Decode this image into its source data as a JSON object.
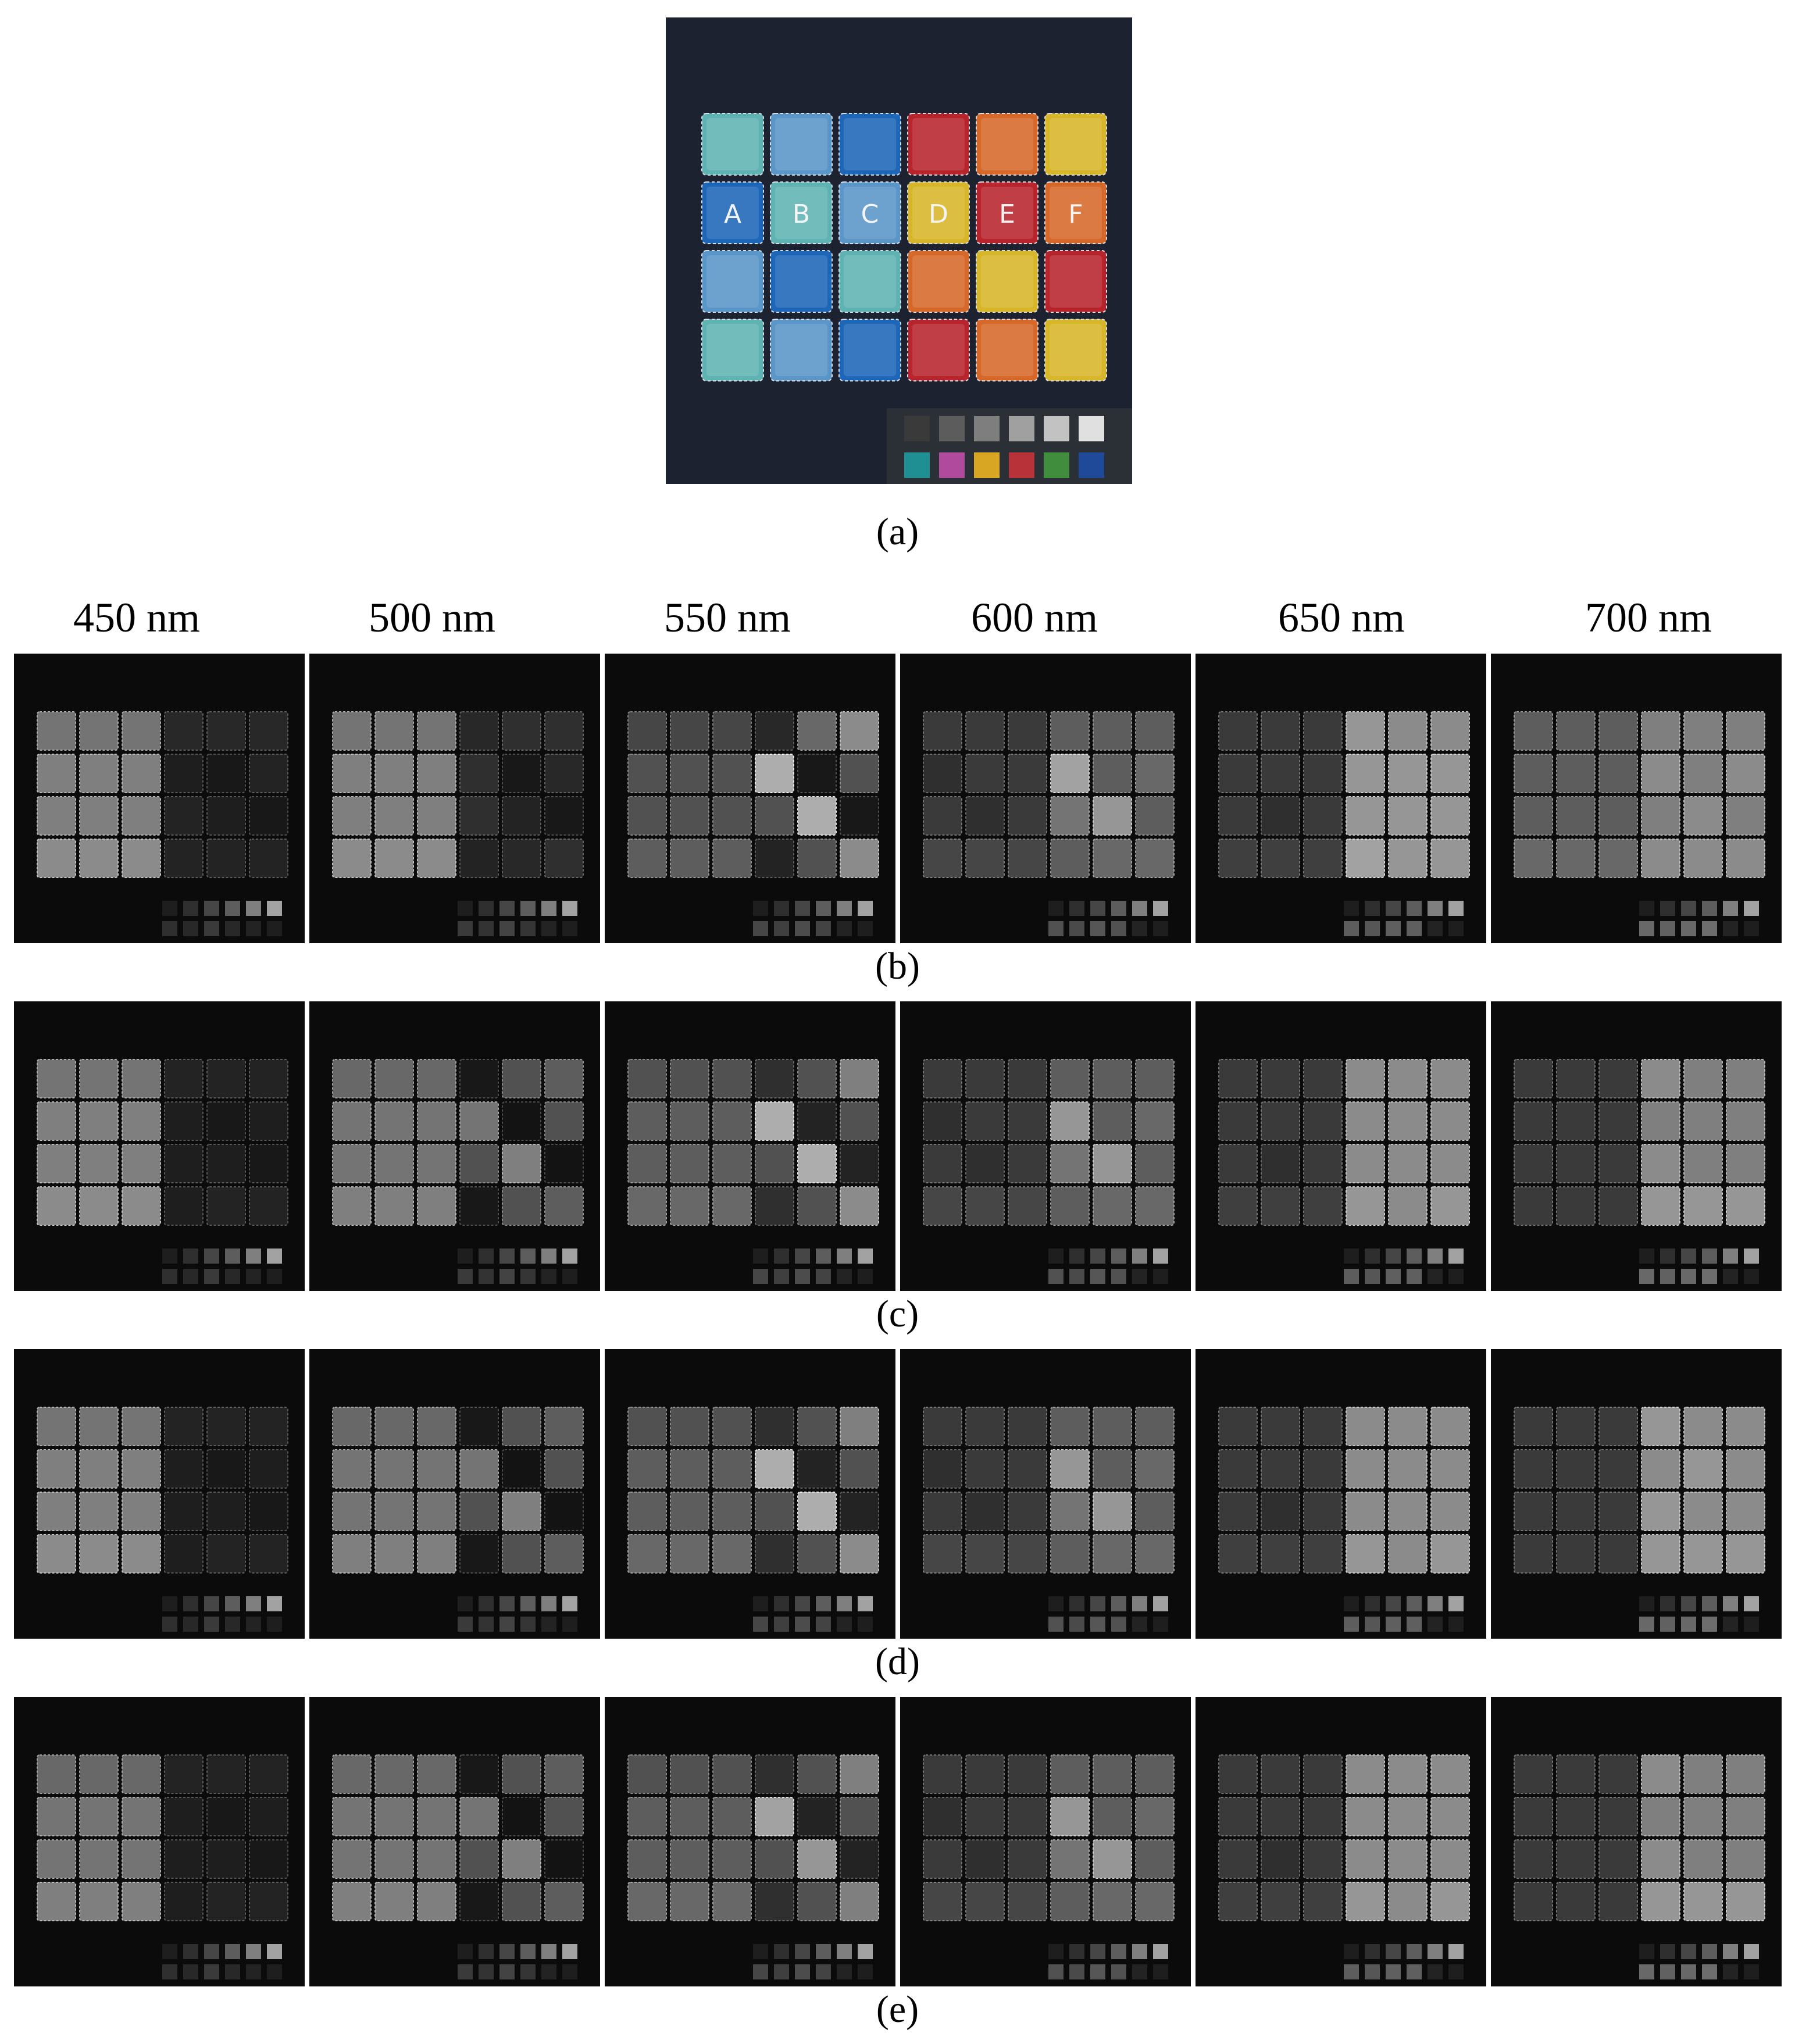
{
  "figure": {
    "panel_a": {
      "caption": "(a)",
      "tile_letters": [
        "A",
        "B",
        "C",
        "D",
        "E",
        "F"
      ],
      "tile_colors": {
        "teal": "#5fb3b3",
        "light_blue": "#5a96c8",
        "blue": "#1d66b8",
        "red": "#b8242c",
        "orange": "#d6692a",
        "yellow": "#d8b62a",
        "background": "#1d2230"
      },
      "tile_grid": [
        [
          "teal",
          "light_blue",
          "blue",
          "red",
          "orange",
          "yellow"
        ],
        [
          "blue",
          "teal",
          "light_blue",
          "yellow",
          "red",
          "orange"
        ],
        [
          "light_blue",
          "blue",
          "teal",
          "orange",
          "yellow",
          "red"
        ],
        [
          "teal",
          "light_blue",
          "blue",
          "red",
          "orange",
          "yellow"
        ]
      ],
      "color_checker_top": [
        "#3a3a3a",
        "#5c5c5c",
        "#7e7e7e",
        "#a0a0a0",
        "#c2c2c2",
        "#e0e0e0"
      ],
      "color_checker_bottom": [
        "#1f8f94",
        "#b04a9c",
        "#d8a622",
        "#b8323a",
        "#3f8d3d",
        "#1f4a9a"
      ]
    },
    "wavelength_labels": [
      "450 nm",
      "500 nm",
      "550 nm",
      "600 nm",
      "650 nm",
      "700 nm"
    ],
    "rows": [
      {
        "caption": "(b)",
        "brightness": [
          [
            [
              0.45,
              0.45,
              0.45,
              0.12,
              0.12,
              0.12
            ],
            [
              0.5,
              0.5,
              0.5,
              0.08,
              0.05,
              0.1
            ],
            [
              0.5,
              0.5,
              0.5,
              0.1,
              0.08,
              0.05
            ],
            [
              0.55,
              0.55,
              0.55,
              0.1,
              0.1,
              0.1
            ]
          ],
          [
            [
              0.45,
              0.45,
              0.45,
              0.12,
              0.15,
              0.15
            ],
            [
              0.5,
              0.5,
              0.5,
              0.15,
              0.05,
              0.12
            ],
            [
              0.5,
              0.5,
              0.5,
              0.15,
              0.1,
              0.05
            ],
            [
              0.55,
              0.55,
              0.55,
              0.1,
              0.12,
              0.15
            ]
          ],
          [
            [
              0.25,
              0.25,
              0.25,
              0.12,
              0.4,
              0.55
            ],
            [
              0.3,
              0.3,
              0.3,
              0.7,
              0.05,
              0.3
            ],
            [
              0.3,
              0.3,
              0.3,
              0.3,
              0.7,
              0.05
            ],
            [
              0.35,
              0.35,
              0.35,
              0.1,
              0.3,
              0.55
            ]
          ],
          [
            [
              0.2,
              0.2,
              0.2,
              0.35,
              0.35,
              0.35
            ],
            [
              0.15,
              0.2,
              0.2,
              0.65,
              0.35,
              0.4
            ],
            [
              0.2,
              0.15,
              0.2,
              0.45,
              0.6,
              0.35
            ],
            [
              0.25,
              0.25,
              0.25,
              0.35,
              0.4,
              0.4
            ]
          ],
          [
            [
              0.2,
              0.2,
              0.2,
              0.6,
              0.55,
              0.55
            ],
            [
              0.2,
              0.2,
              0.2,
              0.6,
              0.6,
              0.6
            ],
            [
              0.2,
              0.15,
              0.2,
              0.6,
              0.6,
              0.6
            ],
            [
              0.22,
              0.22,
              0.22,
              0.65,
              0.6,
              0.6
            ]
          ],
          [
            [
              0.35,
              0.35,
              0.35,
              0.5,
              0.5,
              0.5
            ],
            [
              0.35,
              0.35,
              0.35,
              0.55,
              0.5,
              0.55
            ],
            [
              0.35,
              0.35,
              0.35,
              0.5,
              0.55,
              0.5
            ],
            [
              0.4,
              0.4,
              0.4,
              0.55,
              0.55,
              0.55
            ]
          ]
        ]
      },
      {
        "caption": "(c)",
        "brightness": [
          [
            [
              0.45,
              0.45,
              0.45,
              0.1,
              0.1,
              0.1
            ],
            [
              0.5,
              0.5,
              0.5,
              0.08,
              0.05,
              0.08
            ],
            [
              0.5,
              0.5,
              0.5,
              0.08,
              0.08,
              0.05
            ],
            [
              0.55,
              0.55,
              0.55,
              0.08,
              0.1,
              0.1
            ]
          ],
          [
            [
              0.4,
              0.4,
              0.4,
              0.05,
              0.3,
              0.35
            ],
            [
              0.45,
              0.45,
              0.45,
              0.45,
              0.03,
              0.3
            ],
            [
              0.45,
              0.45,
              0.45,
              0.3,
              0.5,
              0.03
            ],
            [
              0.5,
              0.5,
              0.5,
              0.05,
              0.3,
              0.35
            ]
          ],
          [
            [
              0.3,
              0.3,
              0.3,
              0.15,
              0.3,
              0.5
            ],
            [
              0.35,
              0.35,
              0.35,
              0.7,
              0.1,
              0.3
            ],
            [
              0.35,
              0.35,
              0.35,
              0.3,
              0.7,
              0.1
            ],
            [
              0.4,
              0.4,
              0.4,
              0.15,
              0.3,
              0.55
            ]
          ],
          [
            [
              0.2,
              0.2,
              0.2,
              0.35,
              0.35,
              0.35
            ],
            [
              0.15,
              0.2,
              0.2,
              0.6,
              0.35,
              0.4
            ],
            [
              0.2,
              0.15,
              0.2,
              0.45,
              0.6,
              0.35
            ],
            [
              0.25,
              0.25,
              0.25,
              0.35,
              0.4,
              0.4
            ]
          ],
          [
            [
              0.2,
              0.2,
              0.2,
              0.55,
              0.55,
              0.55
            ],
            [
              0.2,
              0.2,
              0.2,
              0.55,
              0.55,
              0.55
            ],
            [
              0.2,
              0.15,
              0.2,
              0.55,
              0.55,
              0.55
            ],
            [
              0.22,
              0.22,
              0.22,
              0.6,
              0.55,
              0.6
            ]
          ],
          [
            [
              0.2,
              0.2,
              0.2,
              0.55,
              0.5,
              0.5
            ],
            [
              0.2,
              0.2,
              0.2,
              0.5,
              0.5,
              0.5
            ],
            [
              0.2,
              0.2,
              0.2,
              0.55,
              0.5,
              0.5
            ],
            [
              0.2,
              0.2,
              0.2,
              0.6,
              0.6,
              0.6
            ]
          ]
        ]
      },
      {
        "caption": "(d)",
        "brightness": [
          [
            [
              0.45,
              0.45,
              0.45,
              0.1,
              0.1,
              0.1
            ],
            [
              0.5,
              0.5,
              0.5,
              0.08,
              0.05,
              0.08
            ],
            [
              0.5,
              0.5,
              0.5,
              0.08,
              0.08,
              0.05
            ],
            [
              0.55,
              0.55,
              0.55,
              0.08,
              0.1,
              0.1
            ]
          ],
          [
            [
              0.4,
              0.4,
              0.4,
              0.05,
              0.3,
              0.35
            ],
            [
              0.45,
              0.45,
              0.45,
              0.45,
              0.03,
              0.3
            ],
            [
              0.45,
              0.45,
              0.45,
              0.3,
              0.5,
              0.03
            ],
            [
              0.5,
              0.5,
              0.5,
              0.05,
              0.3,
              0.35
            ]
          ],
          [
            [
              0.3,
              0.3,
              0.3,
              0.15,
              0.3,
              0.5
            ],
            [
              0.35,
              0.35,
              0.35,
              0.7,
              0.1,
              0.3
            ],
            [
              0.35,
              0.35,
              0.35,
              0.3,
              0.7,
              0.1
            ],
            [
              0.4,
              0.4,
              0.4,
              0.15,
              0.3,
              0.55
            ]
          ],
          [
            [
              0.2,
              0.2,
              0.2,
              0.35,
              0.35,
              0.35
            ],
            [
              0.15,
              0.2,
              0.2,
              0.6,
              0.35,
              0.4
            ],
            [
              0.2,
              0.15,
              0.2,
              0.45,
              0.6,
              0.35
            ],
            [
              0.25,
              0.25,
              0.25,
              0.35,
              0.4,
              0.4
            ]
          ],
          [
            [
              0.2,
              0.2,
              0.2,
              0.55,
              0.55,
              0.55
            ],
            [
              0.2,
              0.2,
              0.2,
              0.55,
              0.55,
              0.55
            ],
            [
              0.2,
              0.15,
              0.2,
              0.55,
              0.55,
              0.55
            ],
            [
              0.22,
              0.22,
              0.22,
              0.6,
              0.55,
              0.6
            ]
          ],
          [
            [
              0.2,
              0.2,
              0.2,
              0.6,
              0.55,
              0.55
            ],
            [
              0.2,
              0.2,
              0.2,
              0.55,
              0.6,
              0.55
            ],
            [
              0.2,
              0.2,
              0.2,
              0.6,
              0.55,
              0.55
            ],
            [
              0.2,
              0.2,
              0.2,
              0.6,
              0.6,
              0.6
            ]
          ]
        ]
      },
      {
        "caption": "(e)",
        "brightness": [
          [
            [
              0.4,
              0.4,
              0.4,
              0.1,
              0.1,
              0.1
            ],
            [
              0.45,
              0.45,
              0.45,
              0.08,
              0.05,
              0.08
            ],
            [
              0.45,
              0.45,
              0.45,
              0.08,
              0.08,
              0.05
            ],
            [
              0.5,
              0.5,
              0.5,
              0.08,
              0.1,
              0.1
            ]
          ],
          [
            [
              0.4,
              0.4,
              0.4,
              0.05,
              0.3,
              0.35
            ],
            [
              0.45,
              0.45,
              0.45,
              0.45,
              0.03,
              0.3
            ],
            [
              0.45,
              0.45,
              0.45,
              0.3,
              0.5,
              0.03
            ],
            [
              0.5,
              0.5,
              0.5,
              0.05,
              0.3,
              0.35
            ]
          ],
          [
            [
              0.3,
              0.3,
              0.3,
              0.15,
              0.3,
              0.5
            ],
            [
              0.35,
              0.35,
              0.35,
              0.65,
              0.1,
              0.3
            ],
            [
              0.35,
              0.35,
              0.35,
              0.3,
              0.6,
              0.1
            ],
            [
              0.4,
              0.4,
              0.4,
              0.15,
              0.3,
              0.5
            ]
          ],
          [
            [
              0.2,
              0.2,
              0.2,
              0.35,
              0.35,
              0.35
            ],
            [
              0.15,
              0.2,
              0.2,
              0.6,
              0.35,
              0.4
            ],
            [
              0.2,
              0.15,
              0.2,
              0.45,
              0.6,
              0.35
            ],
            [
              0.25,
              0.25,
              0.25,
              0.35,
              0.4,
              0.4
            ]
          ],
          [
            [
              0.2,
              0.2,
              0.2,
              0.55,
              0.55,
              0.55
            ],
            [
              0.2,
              0.2,
              0.2,
              0.55,
              0.55,
              0.55
            ],
            [
              0.2,
              0.15,
              0.2,
              0.55,
              0.55,
              0.55
            ],
            [
              0.22,
              0.22,
              0.22,
              0.6,
              0.55,
              0.6
            ]
          ],
          [
            [
              0.2,
              0.2,
              0.2,
              0.55,
              0.5,
              0.5
            ],
            [
              0.2,
              0.2,
              0.2,
              0.5,
              0.5,
              0.5
            ],
            [
              0.2,
              0.2,
              0.2,
              0.55,
              0.5,
              0.5
            ],
            [
              0.2,
              0.2,
              0.2,
              0.6,
              0.6,
              0.6
            ]
          ]
        ]
      }
    ]
  }
}
